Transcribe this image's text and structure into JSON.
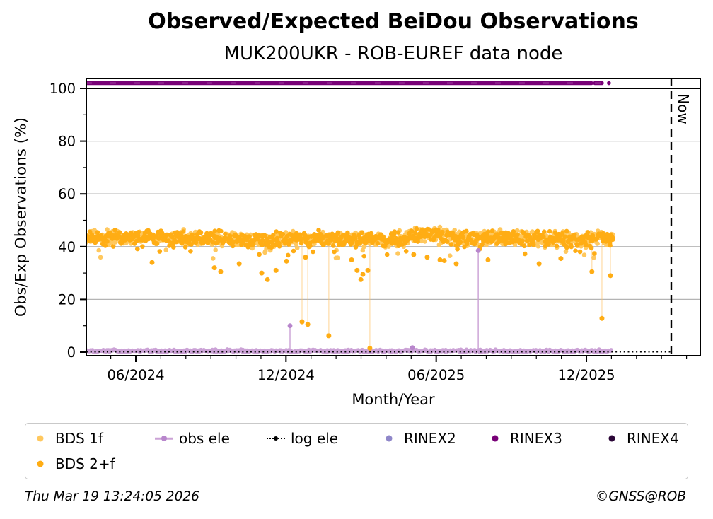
{
  "header": {
    "title": "Observed/Expected BeiDou Observations",
    "subtitle": "MUK200UKR - ROB-EUREF data node"
  },
  "axes": {
    "x_label": "Month/Year",
    "y_label": "Obs/Exp Observations (%)",
    "now_label": "Now",
    "x_tick_labels": [
      "06/2024",
      "12/2024",
      "06/2025",
      "12/2025"
    ],
    "y_tick_labels": [
      "0",
      "20",
      "40",
      "60",
      "80",
      "100"
    ]
  },
  "legend": {
    "items": [
      {
        "label": "BDS 1f",
        "marker": "dot",
        "color": "#FFC85E",
        "row": 0,
        "col": 0
      },
      {
        "label": "BDS 2+f",
        "marker": "dot",
        "color": "#FFAD14",
        "row": 1,
        "col": 0
      },
      {
        "label": "obs ele",
        "marker": "line-dot",
        "color": "#CBA2D6",
        "dot_color": "#B886CC",
        "row": 0,
        "col": 1
      },
      {
        "label": "log ele",
        "marker": "dotted-line-dot",
        "color": "#000000",
        "row": 0,
        "col": 2
      },
      {
        "label": "RINEX2",
        "marker": "dot",
        "color": "#8F87C9",
        "row": 0,
        "col": 3
      },
      {
        "label": "RINEX3",
        "marker": "dot",
        "color": "#780077",
        "row": 0,
        "col": 4
      },
      {
        "label": "RINEX4",
        "marker": "dot",
        "color": "#2B0637",
        "row": 0,
        "col": 5
      }
    ]
  },
  "footer": {
    "timestamp": "Thu Mar 19 13:24:05 2026",
    "credit": "©GNSS@ROB"
  },
  "chart_data": {
    "type": "scatter",
    "title": "Observed/Expected BeiDou Observations",
    "subtitle": "MUK200UKR - ROB-EUREF data node",
    "xlabel": "Month/Year",
    "ylabel": "Obs/Exp Observations (%)",
    "x_unit": "calendar months since 2024-01 (0 = Jan 2024); data spans ~Apr 2024 to ~mid Jan 2026",
    "xlim": [
      3.02,
      27.55
    ],
    "ylim": [
      -1.4,
      103.8
    ],
    "x_major_ticks": [
      {
        "m": 5,
        "label": "06/2024"
      },
      {
        "m": 11,
        "label": "12/2024"
      },
      {
        "m": 17,
        "label": "06/2025"
      },
      {
        "m": 23,
        "label": "12/2025"
      }
    ],
    "x_minor_tick_range": {
      "from": 4,
      "to": 27,
      "step": 1
    },
    "y_major_ticks": [
      0,
      20,
      40,
      60,
      80,
      100
    ],
    "y_minor_ticks": [
      10,
      30,
      50,
      70,
      90
    ],
    "grid_y": [
      20,
      40,
      60,
      80
    ],
    "grid_color": "#b4b4b4",
    "expected_line": {
      "y": 100,
      "color": "#000000"
    },
    "now_line": {
      "m": 26.39,
      "label": "Now",
      "date_shown": "Thu Mar 19 2026"
    },
    "series": [
      {
        "name": "BDS 1f",
        "type": "band-scatter",
        "color": "#FFC85E",
        "x_start": 3.02,
        "x_end": 24.08,
        "step": 0.028,
        "jitter": 2.9,
        "mean_profile": [
          [
            3.02,
            43.2
          ],
          [
            4.5,
            43.6
          ],
          [
            6,
            43.3
          ],
          [
            7.5,
            43.5
          ],
          [
            9,
            42.8
          ],
          [
            10.2,
            42.3
          ],
          [
            11.3,
            43.1
          ],
          [
            12.5,
            43.3
          ],
          [
            13.8,
            42.6
          ],
          [
            14.6,
            42.2
          ],
          [
            15.5,
            43.2
          ],
          [
            16.4,
            44.3
          ],
          [
            17.0,
            44.6
          ],
          [
            17.6,
            43.4
          ],
          [
            18.3,
            42.9
          ],
          [
            19.2,
            43.5
          ],
          [
            20.2,
            43.3
          ],
          [
            21.2,
            43.0
          ],
          [
            22.2,
            42.8
          ],
          [
            23.1,
            42.5
          ],
          [
            23.7,
            43.3
          ],
          [
            24.08,
            43.0
          ]
        ],
        "band_range": [
          39.3,
          48.5
        ]
      },
      {
        "name": "BDS 2+f",
        "type": "band-scatter",
        "color": "#FFAD14",
        "x_start": 3.02,
        "x_end": 24.08,
        "step": 0.028,
        "jitter": 2.9,
        "mean_profile": [
          [
            3.02,
            43.2
          ],
          [
            4.5,
            43.6
          ],
          [
            6,
            43.3
          ],
          [
            7.5,
            43.5
          ],
          [
            9,
            42.8
          ],
          [
            10.2,
            42.3
          ],
          [
            11.3,
            43.1
          ],
          [
            12.5,
            43.3
          ],
          [
            13.8,
            42.6
          ],
          [
            14.6,
            42.2
          ],
          [
            15.5,
            43.2
          ],
          [
            16.4,
            44.3
          ],
          [
            17.0,
            44.6
          ],
          [
            17.6,
            43.4
          ],
          [
            18.3,
            42.9
          ],
          [
            19.2,
            43.5
          ],
          [
            20.2,
            43.3
          ],
          [
            21.2,
            43.0
          ],
          [
            22.2,
            42.8
          ],
          [
            23.1,
            42.5
          ],
          [
            23.7,
            43.3
          ],
          [
            24.08,
            43.0
          ]
        ],
        "band_range": [
          39.3,
          48.5
        ],
        "outliers": [
          [
            5.65,
            34,
            0
          ],
          [
            8.14,
            32,
            0
          ],
          [
            8.39,
            30.5,
            0
          ],
          [
            9.13,
            33.5,
            0
          ],
          [
            10.03,
            30,
            0
          ],
          [
            10.26,
            27.5,
            0
          ],
          [
            10.6,
            31,
            0
          ],
          [
            11.02,
            34.5,
            0
          ],
          [
            11.64,
            11.5,
            1
          ],
          [
            11.78,
            36,
            0
          ],
          [
            11.87,
            10.5,
            1
          ],
          [
            12.71,
            6.2,
            1
          ],
          [
            13.62,
            35,
            0
          ],
          [
            13.84,
            31,
            0
          ],
          [
            13.99,
            27.5,
            0
          ],
          [
            14.07,
            29.5,
            0
          ],
          [
            14.27,
            31,
            0
          ],
          [
            14.35,
            1.5,
            1
          ],
          [
            16.1,
            37,
            0
          ],
          [
            16.64,
            36,
            0
          ],
          [
            17.15,
            35,
            0
          ],
          [
            17.32,
            34.7,
            0
          ],
          [
            17.8,
            33.5,
            0
          ],
          [
            19.07,
            35,
            0
          ],
          [
            21.11,
            33.5,
            0
          ],
          [
            21.98,
            35.5,
            0
          ],
          [
            23.22,
            30.5,
            1
          ],
          [
            23.62,
            12.8,
            1
          ],
          [
            23.96,
            29,
            1
          ]
        ],
        "dropline_color": "#ffc46a"
      },
      {
        "name": "obs ele",
        "type": "band-scatter",
        "color": "#CBA2D6",
        "x_start": 3.02,
        "x_end": 23.99,
        "step": 0.04,
        "jitter": 0.55,
        "mean_profile": [
          [
            3.02,
            0.45
          ],
          [
            23.99,
            0.45
          ]
        ],
        "band_range": [
          0.03,
          1.5
        ],
        "spikes": [
          [
            11.16,
            10.0
          ],
          [
            16.05,
            1.7
          ],
          [
            18.68,
            38.5
          ]
        ],
        "spike_dot_color": "#B886CC"
      },
      {
        "name": "log ele",
        "type": "dotted-line",
        "color": "#000000",
        "y": 0.2,
        "x_start": 3.02,
        "x_end": 26.39
      },
      {
        "name": "RINEX2",
        "type": "scatter",
        "color": "#8F87C9",
        "points": []
      },
      {
        "name": "RINEX3",
        "type": "line-dense",
        "color": "#780077",
        "y": 102,
        "segments": [
          [
            3.02,
            23.2
          ],
          [
            23.34,
            23.62
          ]
        ],
        "dots": [
          23.9
        ]
      },
      {
        "name": "RINEX4",
        "type": "scatter",
        "color": "#2B0637",
        "points": []
      }
    ]
  }
}
